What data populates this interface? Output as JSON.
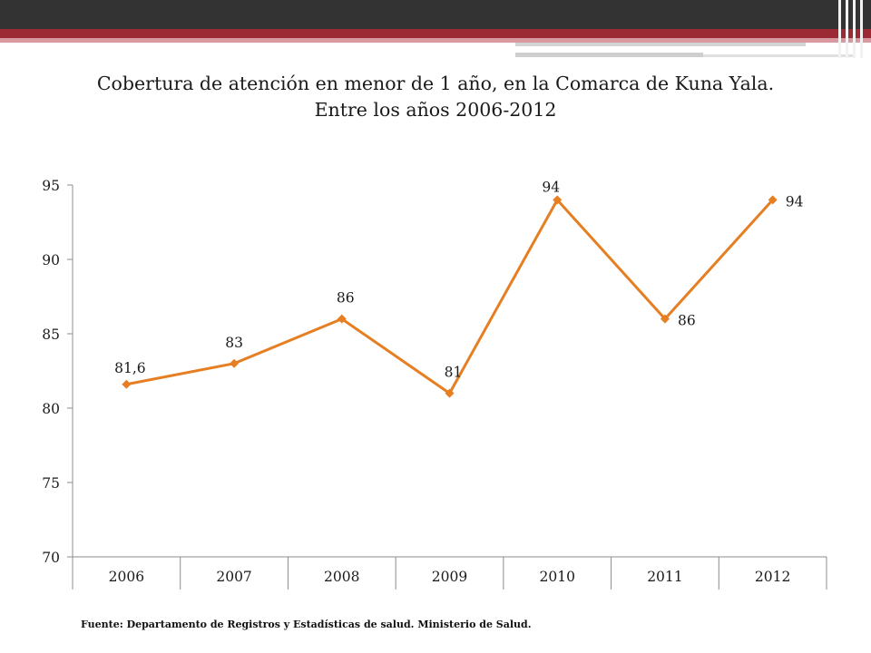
{
  "slide": {
    "title_line1": "Cobertura de atención en menor de 1 año, en la Comarca de Kuna Yala.",
    "title_line2": "Entre los años 2006-2012",
    "source": "Fuente: Departamento de Registros y Estadísticas de salud. Ministerio de Salud.",
    "colors": {
      "header_dark": "#333333",
      "header_red": "#9c2a35",
      "header_pink": "#d89aa0"
    }
  },
  "chart_data": {
    "type": "line",
    "title": "Cobertura de atención en menor de 1 año, en la Comarca de Kuna Yala. Entre los años 2006-2012",
    "xlabel": "",
    "ylabel": "",
    "categories": [
      "2006",
      "2007",
      "2008",
      "2009",
      "2010",
      "2011",
      "2012"
    ],
    "series": [
      {
        "values": [
          81.6,
          83,
          86,
          81,
          94,
          86,
          94
        ],
        "labels": [
          "81,6",
          "83",
          "86",
          "81",
          "94",
          "86",
          "94"
        ],
        "color": "#e67e22",
        "marker": "diamond"
      }
    ],
    "ylim": [
      70,
      95
    ],
    "yticks": [
      70,
      75,
      80,
      85,
      90,
      95
    ],
    "grid": false,
    "legend": "none"
  }
}
